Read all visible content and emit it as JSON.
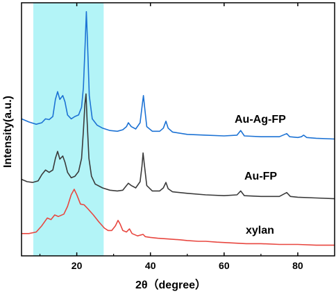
{
  "chart_data": {
    "type": "line",
    "xlabel": "2θ（degree）",
    "ylabel": "Intensity(a.u.)",
    "xlim": [
      5,
      90
    ],
    "xticks": [
      20,
      40,
      60,
      80
    ],
    "y_axis_ticks": false,
    "highlight_band": {
      "x_range": [
        8.2,
        27.3
      ],
      "color": "#b3f4f7"
    },
    "series": [
      {
        "name": "Au-Ag-FP",
        "color": "#1c72d4",
        "points": [
          [
            5,
            0.3
          ],
          [
            7,
            0.26
          ],
          [
            9,
            0.23
          ],
          [
            10.5,
            0.25
          ],
          [
            11.5,
            0.3
          ],
          [
            12.5,
            0.29
          ],
          [
            13.5,
            0.33
          ],
          [
            14.2,
            0.55
          ],
          [
            14.8,
            0.65
          ],
          [
            15.4,
            0.55
          ],
          [
            16.2,
            0.6
          ],
          [
            16.8,
            0.52
          ],
          [
            17.5,
            0.35
          ],
          [
            18.5,
            0.3
          ],
          [
            19.5,
            0.33
          ],
          [
            20.5,
            0.35
          ],
          [
            21.3,
            0.45
          ],
          [
            21.8,
            0.7
          ],
          [
            22.3,
            1.3
          ],
          [
            22.6,
            1.68
          ],
          [
            22.9,
            1.3
          ],
          [
            23.4,
            0.6
          ],
          [
            24.2,
            0.3
          ],
          [
            25.5,
            0.22
          ],
          [
            27,
            0.18
          ],
          [
            29,
            0.15
          ],
          [
            31,
            0.14
          ],
          [
            32.5,
            0.16
          ],
          [
            33.5,
            0.2
          ],
          [
            34,
            0.25
          ],
          [
            34.8,
            0.2
          ],
          [
            36,
            0.17
          ],
          [
            37.2,
            0.25
          ],
          [
            37.7,
            0.45
          ],
          [
            38.1,
            0.6
          ],
          [
            38.5,
            0.42
          ],
          [
            39,
            0.2
          ],
          [
            40.5,
            0.14
          ],
          [
            42.5,
            0.14
          ],
          [
            43.5,
            0.18
          ],
          [
            44.2,
            0.27
          ],
          [
            44.8,
            0.18
          ],
          [
            46,
            0.13
          ],
          [
            50,
            0.1
          ],
          [
            55,
            0.09
          ],
          [
            60,
            0.08
          ],
          [
            63.5,
            0.09
          ],
          [
            64.5,
            0.15
          ],
          [
            65.5,
            0.08
          ],
          [
            70,
            0.07
          ],
          [
            75,
            0.07
          ],
          [
            77,
            0.11
          ],
          [
            77.8,
            0.07
          ],
          [
            80,
            0.06
          ],
          [
            81,
            0.07
          ],
          [
            81.6,
            0.09
          ],
          [
            82.4,
            0.06
          ],
          [
            85,
            0.05
          ],
          [
            90,
            0.04
          ]
        ]
      },
      {
        "name": "Au-FP",
        "color": "#3a3a3a",
        "points": [
          [
            5,
            0.28
          ],
          [
            6.5,
            0.25
          ],
          [
            8,
            0.24
          ],
          [
            9.5,
            0.26
          ],
          [
            10.5,
            0.34
          ],
          [
            11.5,
            0.4
          ],
          [
            12.5,
            0.37
          ],
          [
            13.5,
            0.4
          ],
          [
            14.2,
            0.55
          ],
          [
            14.8,
            0.64
          ],
          [
            15.4,
            0.54
          ],
          [
            16.2,
            0.58
          ],
          [
            16.8,
            0.5
          ],
          [
            17.5,
            0.37
          ],
          [
            18.5,
            0.3
          ],
          [
            19.5,
            0.32
          ],
          [
            20.5,
            0.38
          ],
          [
            21.3,
            0.55
          ],
          [
            21.8,
            0.9
          ],
          [
            22.2,
            1.25
          ],
          [
            22.5,
            1.38
          ],
          [
            22.8,
            1.05
          ],
          [
            23.3,
            0.55
          ],
          [
            24,
            0.32
          ],
          [
            25,
            0.22
          ],
          [
            27,
            0.17
          ],
          [
            29,
            0.14
          ],
          [
            31,
            0.13
          ],
          [
            32.5,
            0.14
          ],
          [
            33.5,
            0.2
          ],
          [
            34,
            0.23
          ],
          [
            34.8,
            0.2
          ],
          [
            36,
            0.17
          ],
          [
            37.2,
            0.25
          ],
          [
            37.7,
            0.45
          ],
          [
            38,
            0.62
          ],
          [
            38.4,
            0.45
          ],
          [
            39,
            0.2
          ],
          [
            40.5,
            0.13
          ],
          [
            42.5,
            0.13
          ],
          [
            43.5,
            0.17
          ],
          [
            44.2,
            0.24
          ],
          [
            44.8,
            0.16
          ],
          [
            46,
            0.12
          ],
          [
            50,
            0.1
          ],
          [
            55,
            0.08
          ],
          [
            60,
            0.07
          ],
          [
            63.5,
            0.08
          ],
          [
            64.5,
            0.13
          ],
          [
            65.5,
            0.07
          ],
          [
            70,
            0.06
          ],
          [
            75,
            0.06
          ],
          [
            77,
            0.11
          ],
          [
            78,
            0.06
          ],
          [
            80,
            0.05
          ],
          [
            85,
            0.04
          ],
          [
            90,
            0.03
          ]
        ]
      },
      {
        "name": "xylan",
        "color": "#e8463f",
        "points": [
          [
            5,
            0.18
          ],
          [
            7,
            0.18
          ],
          [
            9,
            0.2
          ],
          [
            10.5,
            0.28
          ],
          [
            12,
            0.38
          ],
          [
            13,
            0.36
          ],
          [
            14,
            0.42
          ],
          [
            15,
            0.4
          ],
          [
            16.5,
            0.43
          ],
          [
            17.5,
            0.53
          ],
          [
            18.5,
            0.68
          ],
          [
            19.3,
            0.75
          ],
          [
            20,
            0.68
          ],
          [
            21,
            0.56
          ],
          [
            22,
            0.55
          ],
          [
            23,
            0.5
          ],
          [
            24.5,
            0.42
          ],
          [
            26,
            0.33
          ],
          [
            27.5,
            0.25
          ],
          [
            28.5,
            0.22
          ],
          [
            29.5,
            0.22
          ],
          [
            30.5,
            0.28
          ],
          [
            31.2,
            0.35
          ],
          [
            31.8,
            0.3
          ],
          [
            32.5,
            0.22
          ],
          [
            33.5,
            0.2
          ],
          [
            34.3,
            0.24
          ],
          [
            35,
            0.18
          ],
          [
            36.5,
            0.15
          ],
          [
            38,
            0.17
          ],
          [
            38.6,
            0.14
          ],
          [
            40,
            0.13
          ],
          [
            42,
            0.12
          ],
          [
            45,
            0.11
          ],
          [
            48,
            0.1
          ],
          [
            50,
            0.09
          ],
          [
            53,
            0.08
          ],
          [
            55,
            0.08
          ],
          [
            58,
            0.07
          ],
          [
            62,
            0.06
          ],
          [
            66,
            0.05
          ],
          [
            70,
            0.05
          ],
          [
            75,
            0.04
          ],
          [
            80,
            0.04
          ],
          [
            85,
            0.03
          ],
          [
            90,
            0.03
          ]
        ]
      }
    ]
  }
}
